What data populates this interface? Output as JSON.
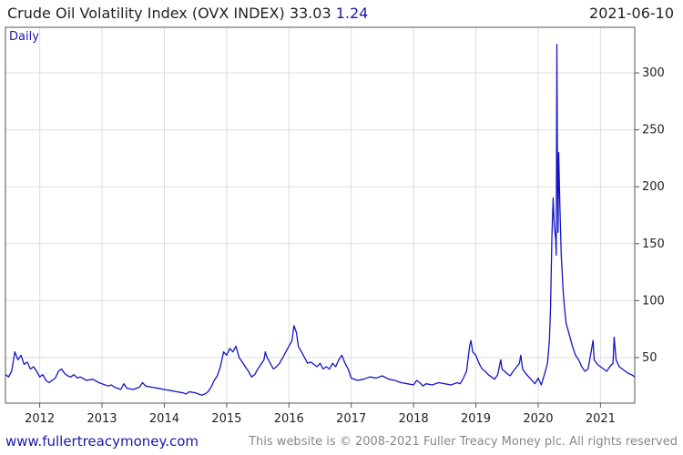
{
  "header": {
    "title": "Crude Oil Volatility Index (OVX INDEX) 33.03",
    "change": "1.24",
    "date": "2021-06-10"
  },
  "footer": {
    "site": "www.fullertreacymoney.com",
    "copyright": "This website is © 2008-2021 Fuller Treacy Money plc. All rights reserved"
  },
  "colors": {
    "series": "#1414c8",
    "grid": "#dddddd",
    "frame": "#555555",
    "accent": "#1a1aa8"
  },
  "chart_data": {
    "type": "line",
    "title": "Crude Oil Volatility Index (OVX INDEX) 33.03",
    "period_label": "Daily",
    "xlabel": "",
    "ylabel": "",
    "x_ticks": [
      "2012",
      "2013",
      "2014",
      "2015",
      "2016",
      "2017",
      "2018",
      "2019",
      "2020",
      "2021"
    ],
    "y_ticks": [
      50,
      100,
      150,
      200,
      250,
      300
    ],
    "xlim": [
      2011.45,
      2021.55
    ],
    "ylim": [
      10,
      340
    ],
    "grid": true,
    "series": [
      {
        "values": [
          [
            2011.45,
            35
          ],
          [
            2011.5,
            33
          ],
          [
            2011.55,
            38
          ],
          [
            2011.6,
            55
          ],
          [
            2011.65,
            48
          ],
          [
            2011.7,
            52
          ],
          [
            2011.75,
            44
          ],
          [
            2011.8,
            46
          ],
          [
            2011.85,
            40
          ],
          [
            2011.9,
            42
          ],
          [
            2011.95,
            38
          ],
          [
            2012.0,
            33
          ],
          [
            2012.05,
            35
          ],
          [
            2012.1,
            30
          ],
          [
            2012.15,
            28
          ],
          [
            2012.2,
            30
          ],
          [
            2012.25,
            32
          ],
          [
            2012.3,
            38
          ],
          [
            2012.35,
            40
          ],
          [
            2012.4,
            36
          ],
          [
            2012.45,
            34
          ],
          [
            2012.5,
            33
          ],
          [
            2012.55,
            35
          ],
          [
            2012.6,
            32
          ],
          [
            2012.65,
            33
          ],
          [
            2012.75,
            30
          ],
          [
            2012.85,
            31
          ],
          [
            2012.95,
            28
          ],
          [
            2013.0,
            27
          ],
          [
            2013.1,
            25
          ],
          [
            2013.15,
            26
          ],
          [
            2013.2,
            24
          ],
          [
            2013.3,
            22
          ],
          [
            2013.35,
            27
          ],
          [
            2013.4,
            23
          ],
          [
            2013.5,
            22
          ],
          [
            2013.6,
            24
          ],
          [
            2013.65,
            28
          ],
          [
            2013.7,
            25
          ],
          [
            2013.8,
            24
          ],
          [
            2013.9,
            23
          ],
          [
            2014.0,
            22
          ],
          [
            2014.1,
            21
          ],
          [
            2014.2,
            20
          ],
          [
            2014.3,
            19
          ],
          [
            2014.35,
            18
          ],
          [
            2014.4,
            20
          ],
          [
            2014.5,
            19
          ],
          [
            2014.55,
            18
          ],
          [
            2014.6,
            17
          ],
          [
            2014.65,
            18
          ],
          [
            2014.7,
            20
          ],
          [
            2014.75,
            24
          ],
          [
            2014.8,
            30
          ],
          [
            2014.85,
            34
          ],
          [
            2014.9,
            42
          ],
          [
            2014.95,
            55
          ],
          [
            2015.0,
            52
          ],
          [
            2015.05,
            58
          ],
          [
            2015.1,
            55
          ],
          [
            2015.15,
            60
          ],
          [
            2015.2,
            50
          ],
          [
            2015.25,
            46
          ],
          [
            2015.3,
            42
          ],
          [
            2015.35,
            38
          ],
          [
            2015.4,
            33
          ],
          [
            2015.45,
            35
          ],
          [
            2015.5,
            40
          ],
          [
            2015.55,
            44
          ],
          [
            2015.6,
            48
          ],
          [
            2015.62,
            55
          ],
          [
            2015.65,
            50
          ],
          [
            2015.7,
            45
          ],
          [
            2015.75,
            40
          ],
          [
            2015.8,
            42
          ],
          [
            2015.85,
            45
          ],
          [
            2015.9,
            50
          ],
          [
            2015.95,
            55
          ],
          [
            2016.0,
            60
          ],
          [
            2016.05,
            65
          ],
          [
            2016.08,
            78
          ],
          [
            2016.12,
            72
          ],
          [
            2016.15,
            60
          ],
          [
            2016.2,
            55
          ],
          [
            2016.25,
            50
          ],
          [
            2016.3,
            45
          ],
          [
            2016.35,
            46
          ],
          [
            2016.4,
            44
          ],
          [
            2016.45,
            42
          ],
          [
            2016.5,
            45
          ],
          [
            2016.55,
            40
          ],
          [
            2016.6,
            42
          ],
          [
            2016.65,
            40
          ],
          [
            2016.7,
            45
          ],
          [
            2016.75,
            42
          ],
          [
            2016.8,
            48
          ],
          [
            2016.85,
            52
          ],
          [
            2016.9,
            45
          ],
          [
            2016.95,
            40
          ],
          [
            2017.0,
            32
          ],
          [
            2017.1,
            30
          ],
          [
            2017.2,
            31
          ],
          [
            2017.3,
            33
          ],
          [
            2017.4,
            32
          ],
          [
            2017.5,
            34
          ],
          [
            2017.6,
            31
          ],
          [
            2017.7,
            30
          ],
          [
            2017.8,
            28
          ],
          [
            2017.9,
            27
          ],
          [
            2018.0,
            26
          ],
          [
            2018.05,
            30
          ],
          [
            2018.1,
            28
          ],
          [
            2018.15,
            25
          ],
          [
            2018.2,
            27
          ],
          [
            2018.3,
            26
          ],
          [
            2018.4,
            28
          ],
          [
            2018.5,
            27
          ],
          [
            2018.6,
            26
          ],
          [
            2018.7,
            28
          ],
          [
            2018.75,
            27
          ],
          [
            2018.8,
            32
          ],
          [
            2018.85,
            38
          ],
          [
            2018.9,
            60
          ],
          [
            2018.92,
            65
          ],
          [
            2018.95,
            55
          ],
          [
            2019.0,
            52
          ],
          [
            2019.05,
            45
          ],
          [
            2019.1,
            40
          ],
          [
            2019.15,
            38
          ],
          [
            2019.2,
            35
          ],
          [
            2019.25,
            33
          ],
          [
            2019.3,
            31
          ],
          [
            2019.35,
            35
          ],
          [
            2019.4,
            48
          ],
          [
            2019.42,
            40
          ],
          [
            2019.5,
            36
          ],
          [
            2019.55,
            34
          ],
          [
            2019.6,
            38
          ],
          [
            2019.7,
            45
          ],
          [
            2019.72,
            52
          ],
          [
            2019.75,
            40
          ],
          [
            2019.8,
            36
          ],
          [
            2019.85,
            33
          ],
          [
            2019.9,
            30
          ],
          [
            2019.95,
            27
          ],
          [
            2020.0,
            32
          ],
          [
            2020.05,
            26
          ],
          [
            2020.1,
            35
          ],
          [
            2020.15,
            45
          ],
          [
            2020.18,
            65
          ],
          [
            2020.2,
            95
          ],
          [
            2020.22,
            155
          ],
          [
            2020.24,
            190
          ],
          [
            2020.26,
            165
          ],
          [
            2020.28,
            155
          ],
          [
            2020.29,
            140
          ],
          [
            2020.3,
            325
          ],
          [
            2020.31,
            210
          ],
          [
            2020.32,
            160
          ],
          [
            2020.33,
            230
          ],
          [
            2020.35,
            180
          ],
          [
            2020.37,
            140
          ],
          [
            2020.4,
            110
          ],
          [
            2020.42,
            95
          ],
          [
            2020.45,
            80
          ],
          [
            2020.5,
            70
          ],
          [
            2020.55,
            60
          ],
          [
            2020.6,
            52
          ],
          [
            2020.65,
            48
          ],
          [
            2020.7,
            42
          ],
          [
            2020.75,
            38
          ],
          [
            2020.8,
            40
          ],
          [
            2020.85,
            55
          ],
          [
            2020.88,
            65
          ],
          [
            2020.9,
            48
          ],
          [
            2020.95,
            44
          ],
          [
            2021.0,
            42
          ],
          [
            2021.05,
            40
          ],
          [
            2021.1,
            38
          ],
          [
            2021.15,
            42
          ],
          [
            2021.2,
            45
          ],
          [
            2021.22,
            68
          ],
          [
            2021.25,
            48
          ],
          [
            2021.3,
            42
          ],
          [
            2021.35,
            40
          ],
          [
            2021.4,
            38
          ],
          [
            2021.45,
            36
          ],
          [
            2021.5,
            35
          ],
          [
            2021.55,
            33
          ]
        ]
      }
    ]
  }
}
